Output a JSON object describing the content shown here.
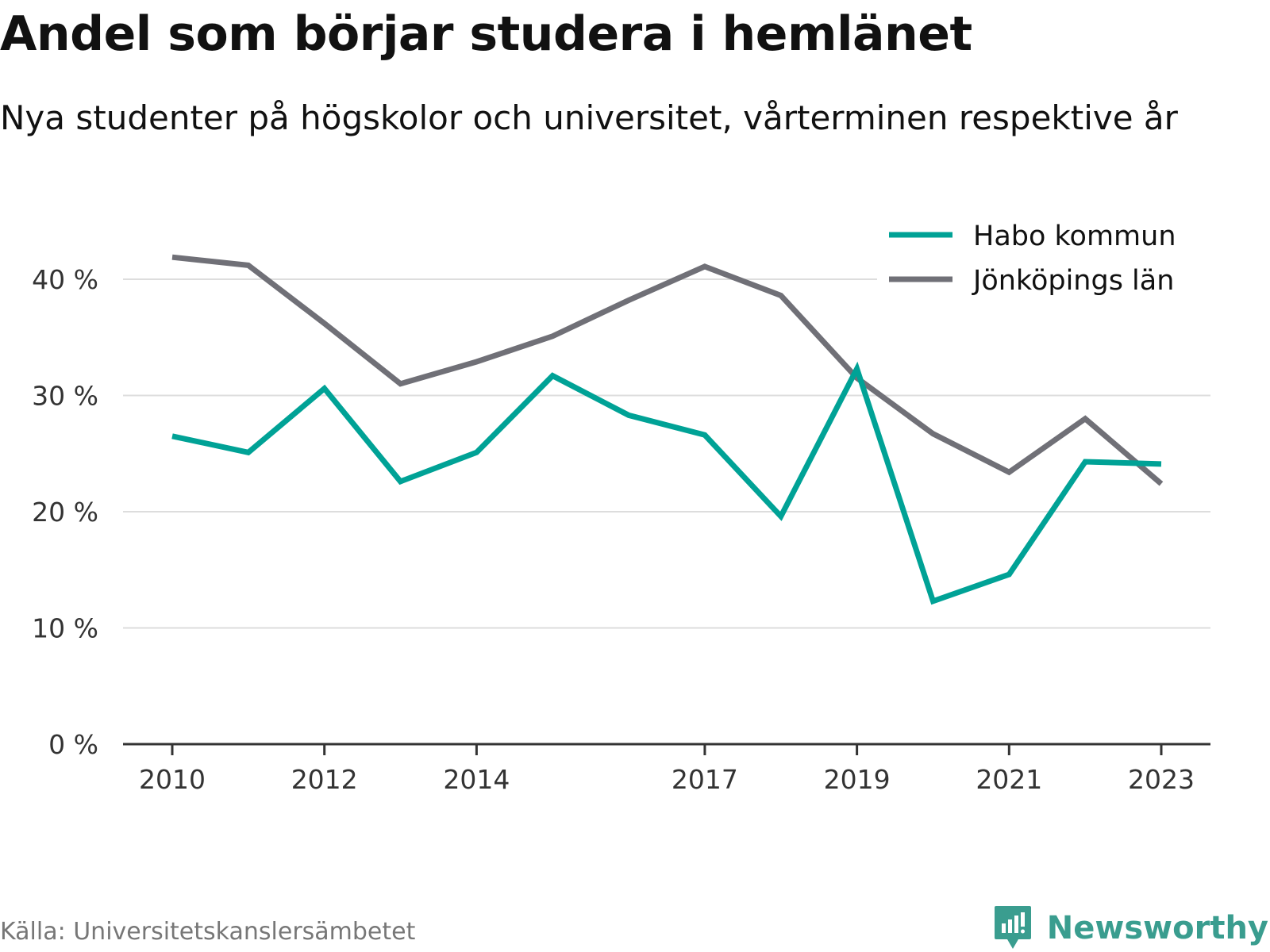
{
  "header": {
    "title": "Andel som börjar studera i hemlänet",
    "subtitle": "Nya studenter på högskolor och universitet, vårterminen respektive år"
  },
  "footer": {
    "source": "Källa: Universitetskanslersämbetet",
    "brand": "Newsworthy",
    "brand_color": "#3a9d8f"
  },
  "chart_data": {
    "type": "line",
    "title": "Andel som börjar studera i hemlänet",
    "subtitle": "Nya studenter på högskolor och universitet, vårterminen respektive år",
    "xlabel": "",
    "ylabel": "",
    "x": [
      2010,
      2011,
      2012,
      2013,
      2014,
      2015,
      2016,
      2017,
      2018,
      2019,
      2020,
      2021,
      2022,
      2023
    ],
    "x_tick_labels": [
      "2010",
      "2012",
      "2014",
      "2017",
      "2019",
      "2021",
      "2023"
    ],
    "x_ticks": [
      2010,
      2012,
      2014,
      2017,
      2019,
      2021,
      2023
    ],
    "y_ticks": [
      0,
      10,
      20,
      30,
      40
    ],
    "y_tick_labels": [
      "0 %",
      "10 %",
      "20 %",
      "30 %",
      "40 %"
    ],
    "ylim": [
      0,
      40
    ],
    "xlim": [
      2009.35,
      2023.65
    ],
    "grid": true,
    "legend_position": "top-right",
    "series": [
      {
        "name": "Habo kommun",
        "color": "#00a296",
        "values": [
          26.5,
          25.1,
          30.6,
          22.6,
          25.1,
          31.7,
          28.3,
          26.6,
          19.6,
          32.3,
          12.3,
          14.6,
          24.3,
          24.1
        ]
      },
      {
        "name": "Jönköpings län",
        "color": "#707077",
        "values": [
          41.9,
          41.2,
          36.2,
          31.0,
          32.9,
          35.1,
          38.2,
          41.1,
          38.6,
          31.5,
          26.7,
          23.4,
          28.0,
          22.4
        ]
      }
    ]
  }
}
